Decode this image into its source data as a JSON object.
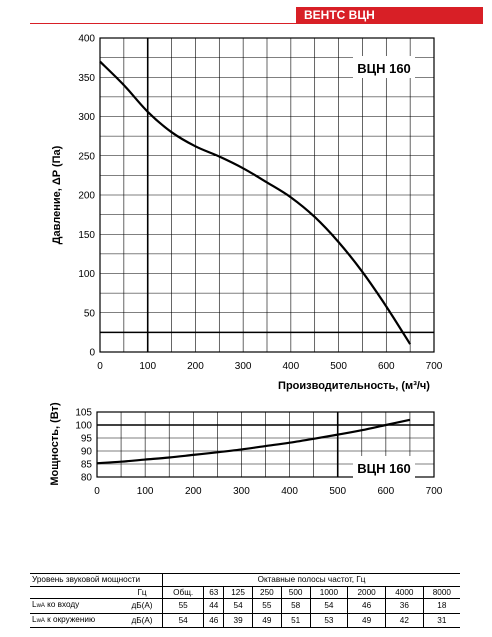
{
  "header": {
    "brand": "ВЕНТС ВЦН"
  },
  "chart_data": [
    {
      "type": "line",
      "title": "ВЦН 160",
      "xlabel": "Производительность, (м³/ч)",
      "ylabel": "Давление, ΔP (Па)",
      "xlim": [
        0,
        700
      ],
      "ylim": [
        0,
        400
      ],
      "x_ticks": [
        "0",
        "100",
        "200",
        "300",
        "400",
        "500",
        "600",
        "700"
      ],
      "y_ticks": [
        "0",
        "50",
        "100",
        "150",
        "200",
        "250",
        "300",
        "350",
        "400"
      ],
      "grid": true,
      "series": [
        {
          "x": [
            0,
            50,
            100,
            150,
            200,
            250,
            300,
            350,
            400,
            450,
            500,
            550,
            600,
            650
          ],
          "y": [
            370,
            340,
            306,
            280,
            262,
            249,
            234,
            216,
            197,
            172,
            140,
            102,
            58,
            10
          ]
        }
      ],
      "reference_lines": {
        "x": 100,
        "y": 25
      }
    },
    {
      "type": "line",
      "title": "ВЦН 160",
      "xlabel": "",
      "ylabel": "Мощность, (Вт)",
      "xlim": [
        0,
        700
      ],
      "ylim": [
        80,
        105
      ],
      "x_ticks": [
        "0",
        "100",
        "200",
        "300",
        "400",
        "500",
        "600",
        "700"
      ],
      "y_ticks": [
        "80",
        "85",
        "90",
        "95",
        "100",
        "105"
      ],
      "grid": true,
      "series": [
        {
          "x": [
            0,
            50,
            100,
            150,
            200,
            250,
            300,
            350,
            400,
            450,
            500,
            550,
            600,
            650
          ],
          "y": [
            85.3,
            85.9,
            86.7,
            87.5,
            88.5,
            89.5,
            90.6,
            91.9,
            93.2,
            94.7,
            96.3,
            98.0,
            100.0,
            102.0
          ]
        }
      ],
      "reference_lines": {
        "x": 500,
        "y": 100
      }
    }
  ],
  "sound_table": {
    "title": "Уровень звуковой мощности",
    "octave_title": "Октавные полосы частот, Гц",
    "hz_label": "Гц",
    "columns": [
      "Общ.",
      "63",
      "125",
      "250",
      "500",
      "1000",
      "2000",
      "4000",
      "8000"
    ],
    "rows": [
      {
        "label_main": "L",
        "label_sub": "wA",
        "label_rest": " ко входу",
        "unit": "дБ(А)",
        "values": [
          "55",
          "44",
          "54",
          "55",
          "58",
          "54",
          "46",
          "36",
          "18"
        ]
      },
      {
        "label_main": "L",
        "label_sub": "wA",
        "label_rest": " к окружению",
        "unit": "дБ(А)",
        "values": [
          "54",
          "46",
          "39",
          "49",
          "51",
          "53",
          "49",
          "42",
          "31"
        ]
      }
    ]
  }
}
